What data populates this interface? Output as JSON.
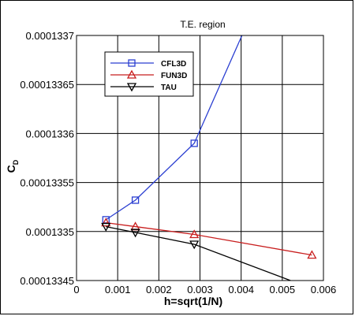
{
  "chart_data": {
    "type": "line",
    "title": "T.E. region",
    "xlabel": "h=sqrt(1/N)",
    "ylabel": "C",
    "ylabel_subscript": "D",
    "xlim": [
      0,
      0.006
    ],
    "ylim": [
      0.00013345,
      0.0001337
    ],
    "xticks": [
      "0",
      "0.001",
      "0.002",
      "0.003",
      "0.004",
      "0.005",
      "0.006"
    ],
    "yticks": [
      "0.00013345",
      "0.0001335",
      "0.00013355",
      "0.0001336",
      "0.00013365",
      "0.0001337"
    ],
    "grid": true,
    "legend_position": "top-left",
    "series": [
      {
        "name": "CFL3D",
        "color": "#2b3fd1",
        "marker": "square",
        "x": [
          0.000715,
          0.00143,
          0.00286,
          0.00402
        ],
        "y": [
          0.000133512,
          0.000133532,
          0.00013359,
          0.0001337
        ]
      },
      {
        "name": "FUN3D",
        "color": "#c81e1e",
        "marker": "triangle-up",
        "x": [
          0.000715,
          0.00143,
          0.00286,
          0.00572
        ],
        "y": [
          0.000133509,
          0.000133505,
          0.000133497,
          0.000133476
        ]
      },
      {
        "name": "TAU",
        "color": "#000000",
        "marker": "triangle-down",
        "x": [
          0.000715,
          0.00143,
          0.00286,
          0.0052
        ],
        "y": [
          0.000133505,
          0.000133499,
          0.000133487,
          0.00013345
        ]
      }
    ]
  }
}
